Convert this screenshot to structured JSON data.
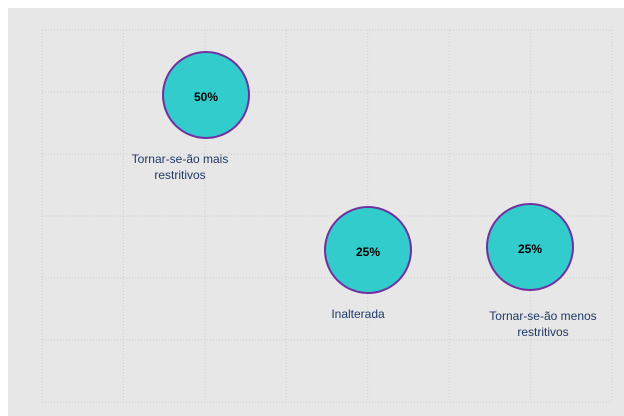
{
  "chart_data": {
    "type": "bubble",
    "categories": [
      "Tornar-se-ão mais restritivos",
      "Inalterada",
      "Tornar-se-ão menos restritivos"
    ],
    "values": [
      50,
      25,
      25
    ],
    "value_labels": [
      "50%",
      "25%",
      "25%"
    ],
    "color": "#33cccc",
    "edge_color": "#7030a0",
    "label_color": "#1f3864",
    "grid": true
  }
}
